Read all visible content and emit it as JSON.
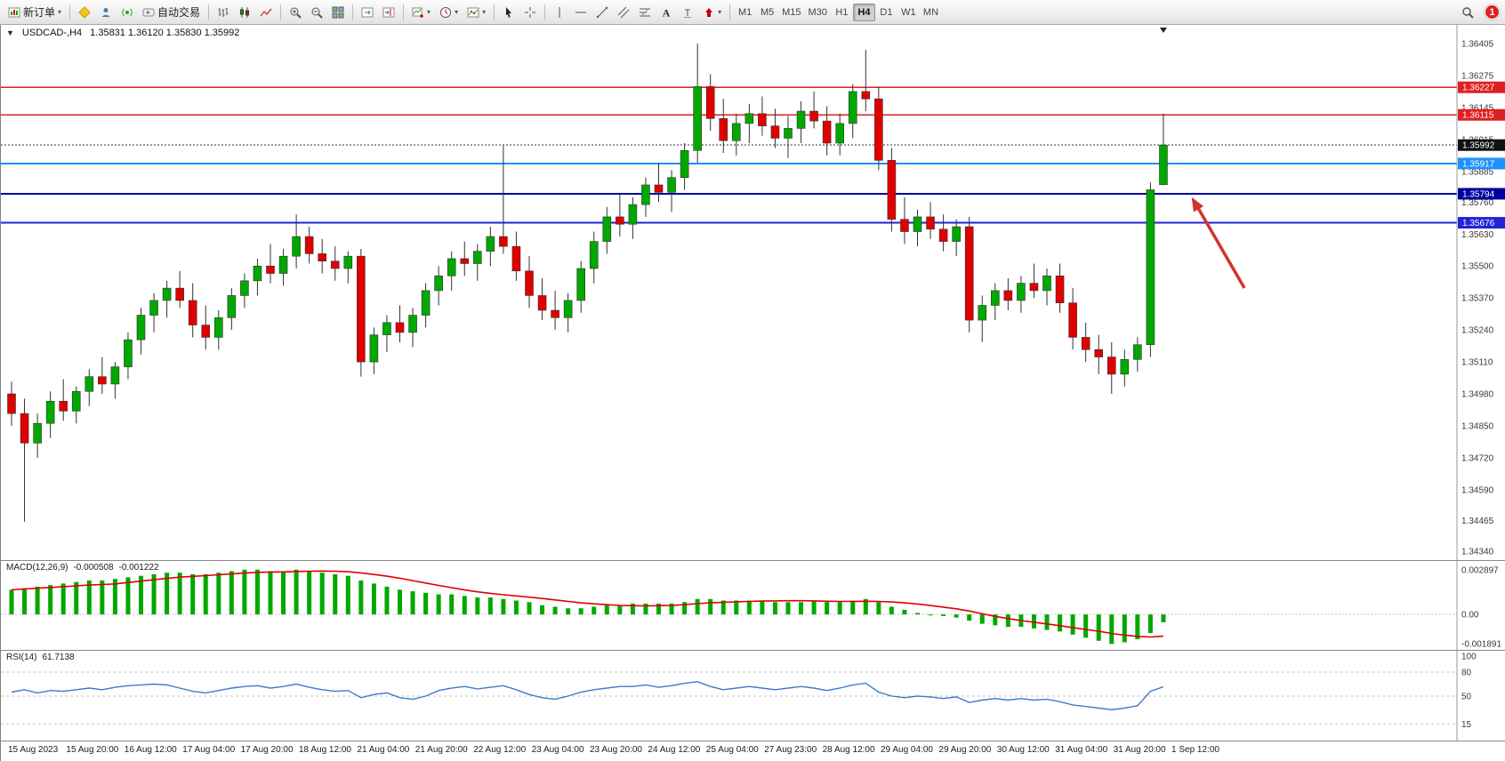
{
  "toolbar": {
    "new_order_label": "新订单",
    "auto_trading_label": "自动交易",
    "caret_char": "▾",
    "groups": [
      [
        {
          "name": "new-order-button",
          "icon": "new-order-icon",
          "label_key": "new_order_label",
          "caret": true
        }
      ],
      [
        {
          "name": "market-button",
          "icon": "market-icon"
        },
        {
          "name": "profile-button",
          "icon": "profile-icon"
        },
        {
          "name": "signals-button",
          "icon": "signals-icon"
        },
        {
          "name": "auto-trading-button",
          "icon": "autotrade-icon",
          "label_key": "auto_trading_label"
        }
      ],
      [
        {
          "name": "bar-chart-button",
          "icon": "bar-chart-icon"
        },
        {
          "name": "candle-chart-button",
          "icon": "candle-chart-icon"
        },
        {
          "name": "line-chart-button",
          "icon": "line-chart-icon"
        }
      ],
      [
        {
          "name": "zoom-in-button",
          "icon": "zoom-in-icon"
        },
        {
          "name": "zoom-out-button",
          "icon": "zoom-out-icon"
        },
        {
          "name": "tile-windows-button",
          "icon": "tile-windows-icon"
        }
      ],
      [
        {
          "name": "auto-scroll-button",
          "icon": "autoscroll-icon"
        },
        {
          "name": "chart-shift-button",
          "icon": "chart-shift-icon"
        }
      ],
      [
        {
          "name": "new-chart-button",
          "icon": "new-chart-icon",
          "caret": true
        },
        {
          "name": "periods-button",
          "icon": "period-icon",
          "caret": true
        },
        {
          "name": "indicators-button",
          "icon": "indicators-icon",
          "caret": true
        }
      ],
      [
        {
          "name": "cursor-button",
          "icon": "cursor-icon"
        },
        {
          "name": "crosshair-button",
          "icon": "crosshair-icon"
        }
      ],
      [
        {
          "name": "vertical-line-button",
          "icon": "vline-icon"
        },
        {
          "name": "horizontal-line-button",
          "icon": "hline-icon"
        },
        {
          "name": "trendline-button",
          "icon": "trendline-icon"
        },
        {
          "name": "channel-button",
          "icon": "channel-icon"
        },
        {
          "name": "fibonacci-button",
          "icon": "fibo-icon"
        },
        {
          "name": "text-button",
          "icon": "text-icon"
        },
        {
          "name": "text-label-button",
          "icon": "label-icon"
        },
        {
          "name": "arrows-button",
          "icon": "arrows-icon",
          "caret": true
        }
      ]
    ],
    "timeframes": [
      "M1",
      "M5",
      "M15",
      "M30",
      "H1",
      "H4",
      "D1",
      "W1",
      "MN"
    ],
    "active_timeframe": "H4",
    "notification_count": "1"
  },
  "chart": {
    "title": "USDCAD-,H4",
    "ohlc": "1.35831 1.36120 1.35830 1.35992",
    "collapse_arrow": "▼",
    "price_axis_labels": [
      "1.36405",
      "1.36275",
      "1.36145",
      "1.36015",
      "1.35885",
      "1.35760",
      "1.35630",
      "1.35500",
      "1.35370",
      "1.35240",
      "1.35110",
      "1.34980",
      "1.34850",
      "1.34720",
      "1.34590",
      "1.34465",
      "1.34340"
    ],
    "hlines": [
      {
        "price": 1.36227,
        "label": "1.36227",
        "line": "#e02020",
        "badge": "#e02020",
        "width": 1.4,
        "style": "solid"
      },
      {
        "price": 1.36115,
        "label": "1.36115",
        "line": "#e02020",
        "badge": "#e02020",
        "width": 1.4,
        "style": "solid"
      },
      {
        "price": 1.35992,
        "label": "1.35992",
        "line": "#333333",
        "badge": "#111111",
        "width": 1,
        "style": "dotted"
      },
      {
        "price": 1.35917,
        "label": "1.35917",
        "line": "#1e90ff",
        "badge": "#1e90ff",
        "width": 2,
        "style": "solid"
      },
      {
        "price": 1.35794,
        "label": "1.35794",
        "line": "#0000a0",
        "badge": "#0000a0",
        "width": 2,
        "style": "solid"
      },
      {
        "price": 1.35676,
        "label": "1.35676",
        "line": "#2222d8",
        "badge": "#2222d8",
        "width": 2,
        "style": "solid"
      }
    ],
    "time_axis_labels": [
      "15 Aug 2023",
      "15 Aug 20:00",
      "16 Aug 12:00",
      "17 Aug 04:00",
      "17 Aug 20:00",
      "18 Aug 12:00",
      "21 Aug 04:00",
      "21 Aug 20:00",
      "22 Aug 12:00",
      "23 Aug 04:00",
      "23 Aug 20:00",
      "24 Aug 12:00",
      "25 Aug 04:00",
      "27 Aug 23:00",
      "28 Aug 12:00",
      "29 Aug 04:00",
      "29 Aug 20:00",
      "30 Aug 12:00",
      "31 Aug 04:00",
      "31 Aug 20:00",
      "1 Sep 12:00"
    ],
    "colors": {
      "up": "#00a800",
      "down": "#e00000",
      "wick": "#333333",
      "macd_bar": "#00a800",
      "macd_signal": "#e00000",
      "rsi_line": "#3e7bc8",
      "annotation": "#d0342c"
    }
  },
  "panes": {
    "macd": {
      "label": "MACD(12,26,9)",
      "value1": "-0.000508",
      "value2": "-0.001222",
      "yticks": [
        "0.002897",
        "0.00",
        "-0.001891"
      ]
    },
    "rsi": {
      "label": "RSI(14)",
      "value": "61.7138",
      "yticks": [
        "100",
        "80",
        "50",
        "15"
      ],
      "levels": [
        80,
        50,
        15
      ]
    }
  },
  "chart_data": [
    {
      "type": "candlestick",
      "symbol": "USDCAD-",
      "timeframe": "H4",
      "title": "USDCAD-,H4",
      "current_bar": {
        "open": 1.35831,
        "high": 1.3612,
        "low": 1.3583,
        "close": 1.35992
      },
      "ylim": [
        1.3434,
        1.36405
      ],
      "hlines": [
        1.36227,
        1.36115,
        1.35992,
        1.35917,
        1.35794,
        1.35676
      ],
      "ohlc": [
        [
          1.3498,
          1.3503,
          1.3485,
          1.349
        ],
        [
          1.349,
          1.3496,
          1.3446,
          1.3478
        ],
        [
          1.3478,
          1.349,
          1.3472,
          1.3486
        ],
        [
          1.3486,
          1.3499,
          1.348,
          1.3495
        ],
        [
          1.3495,
          1.3504,
          1.3487,
          1.3491
        ],
        [
          1.3491,
          1.3501,
          1.3486,
          1.3499
        ],
        [
          1.3499,
          1.3508,
          1.3493,
          1.3505
        ],
        [
          1.3505,
          1.3513,
          1.3498,
          1.3502
        ],
        [
          1.3502,
          1.3511,
          1.3496,
          1.3509
        ],
        [
          1.3509,
          1.3523,
          1.3504,
          1.352
        ],
        [
          1.352,
          1.3533,
          1.3514,
          1.353
        ],
        [
          1.353,
          1.3539,
          1.3523,
          1.3536
        ],
        [
          1.3536,
          1.3544,
          1.3529,
          1.3541
        ],
        [
          1.3541,
          1.3548,
          1.3533,
          1.3536
        ],
        [
          1.3536,
          1.3543,
          1.3521,
          1.3526
        ],
        [
          1.3526,
          1.3534,
          1.3516,
          1.3521
        ],
        [
          1.3521,
          1.3532,
          1.3516,
          1.3529
        ],
        [
          1.3529,
          1.3541,
          1.3524,
          1.3538
        ],
        [
          1.3538,
          1.3547,
          1.3533,
          1.3544
        ],
        [
          1.3544,
          1.3553,
          1.3538,
          1.355
        ],
        [
          1.355,
          1.3559,
          1.3543,
          1.3547
        ],
        [
          1.3547,
          1.3557,
          1.3542,
          1.3554
        ],
        [
          1.3554,
          1.3571,
          1.3549,
          1.3562
        ],
        [
          1.3562,
          1.3566,
          1.3551,
          1.3555
        ],
        [
          1.3555,
          1.3561,
          1.3547,
          1.3552
        ],
        [
          1.3552,
          1.3558,
          1.3544,
          1.3549
        ],
        [
          1.3549,
          1.3556,
          1.3543,
          1.3554
        ],
        [
          1.3554,
          1.3557,
          1.3505,
          1.3511
        ],
        [
          1.3511,
          1.3525,
          1.3506,
          1.3522
        ],
        [
          1.3522,
          1.353,
          1.3515,
          1.3527
        ],
        [
          1.3527,
          1.3534,
          1.3519,
          1.3523
        ],
        [
          1.3523,
          1.3533,
          1.3517,
          1.353
        ],
        [
          1.353,
          1.3543,
          1.3525,
          1.354
        ],
        [
          1.354,
          1.355,
          1.3534,
          1.3546
        ],
        [
          1.3546,
          1.3556,
          1.354,
          1.3553
        ],
        [
          1.3553,
          1.356,
          1.3546,
          1.3551
        ],
        [
          1.3551,
          1.3559,
          1.3544,
          1.3556
        ],
        [
          1.3556,
          1.3566,
          1.355,
          1.3562
        ],
        [
          1.3562,
          1.3599,
          1.3555,
          1.3558
        ],
        [
          1.3558,
          1.3564,
          1.3544,
          1.3548
        ],
        [
          1.3548,
          1.3554,
          1.3533,
          1.3538
        ],
        [
          1.3538,
          1.3545,
          1.3528,
          1.3532
        ],
        [
          1.3532,
          1.354,
          1.3524,
          1.3529
        ],
        [
          1.3529,
          1.3539,
          1.3523,
          1.3536
        ],
        [
          1.3536,
          1.3552,
          1.3531,
          1.3549
        ],
        [
          1.3549,
          1.3564,
          1.3543,
          1.356
        ],
        [
          1.356,
          1.3574,
          1.3555,
          1.357
        ],
        [
          1.357,
          1.3579,
          1.3562,
          1.3567
        ],
        [
          1.3567,
          1.3578,
          1.3561,
          1.3575
        ],
        [
          1.3575,
          1.3586,
          1.357,
          1.3583
        ],
        [
          1.3583,
          1.3592,
          1.3576,
          1.358
        ],
        [
          1.358,
          1.3589,
          1.3572,
          1.3586
        ],
        [
          1.3586,
          1.36,
          1.3581,
          1.3597
        ],
        [
          1.3597,
          1.36405,
          1.3592,
          1.3623
        ],
        [
          1.3623,
          1.3628,
          1.3605,
          1.361
        ],
        [
          1.361,
          1.3618,
          1.3596,
          1.3601
        ],
        [
          1.3601,
          1.3612,
          1.3595,
          1.3608
        ],
        [
          1.3608,
          1.3616,
          1.36,
          1.3612
        ],
        [
          1.3612,
          1.3619,
          1.3603,
          1.3607
        ],
        [
          1.3607,
          1.3614,
          1.3598,
          1.3602
        ],
        [
          1.3602,
          1.3611,
          1.3594,
          1.3606
        ],
        [
          1.3606,
          1.3617,
          1.36,
          1.3613
        ],
        [
          1.3613,
          1.3621,
          1.3606,
          1.3609
        ],
        [
          1.3609,
          1.3615,
          1.3595,
          1.36
        ],
        [
          1.36,
          1.3612,
          1.3595,
          1.3608
        ],
        [
          1.3608,
          1.3624,
          1.3602,
          1.3621
        ],
        [
          1.3621,
          1.3638,
          1.3613,
          1.3618
        ],
        [
          1.3618,
          1.3623,
          1.3589,
          1.3593
        ],
        [
          1.3593,
          1.3598,
          1.3564,
          1.3569
        ],
        [
          1.3569,
          1.3578,
          1.3559,
          1.3564
        ],
        [
          1.3564,
          1.3573,
          1.3558,
          1.357
        ],
        [
          1.357,
          1.3576,
          1.3561,
          1.3565
        ],
        [
          1.3565,
          1.3571,
          1.3556,
          1.356
        ],
        [
          1.356,
          1.3569,
          1.3554,
          1.3566
        ],
        [
          1.3566,
          1.357,
          1.3523,
          1.3528
        ],
        [
          1.3528,
          1.3538,
          1.3519,
          1.3534
        ],
        [
          1.3534,
          1.3543,
          1.3528,
          1.354
        ],
        [
          1.354,
          1.3545,
          1.3532,
          1.3536
        ],
        [
          1.3536,
          1.3546,
          1.3531,
          1.3543
        ],
        [
          1.3543,
          1.3551,
          1.3537,
          1.354
        ],
        [
          1.354,
          1.3549,
          1.3534,
          1.3546
        ],
        [
          1.3546,
          1.3551,
          1.3531,
          1.3535
        ],
        [
          1.3535,
          1.3541,
          1.3516,
          1.3521
        ],
        [
          1.3521,
          1.3527,
          1.3511,
          1.3516
        ],
        [
          1.3516,
          1.3522,
          1.3506,
          1.3513
        ],
        [
          1.3513,
          1.3519,
          1.3498,
          1.3506
        ],
        [
          1.3506,
          1.3516,
          1.3501,
          1.3512
        ],
        [
          1.3512,
          1.3521,
          1.3507,
          1.3518
        ],
        [
          1.3518,
          1.3584,
          1.3513,
          1.3581
        ],
        [
          1.35831,
          1.3612,
          1.3583,
          1.35992
        ]
      ]
    },
    {
      "type": "bar",
      "name": "MACD(12,26,9)",
      "current_values": [
        -0.000508,
        -0.001222
      ],
      "ylim": [
        -0.002,
        0.003
      ],
      "yticks": [
        "0.002897",
        "0.00",
        "-0.001891"
      ],
      "signal_period": 9,
      "values": [
        0.0016,
        0.0017,
        0.0018,
        0.0019,
        0.002,
        0.0021,
        0.0022,
        0.0022,
        0.0023,
        0.0024,
        0.0025,
        0.0026,
        0.0027,
        0.0027,
        0.0026,
        0.0026,
        0.0027,
        0.0028,
        0.0029,
        0.0029,
        0.0028,
        0.0028,
        0.0029,
        0.0028,
        0.0027,
        0.0026,
        0.0025,
        0.0022,
        0.002,
        0.0018,
        0.0016,
        0.0015,
        0.0014,
        0.0013,
        0.0013,
        0.0012,
        0.0011,
        0.0011,
        0.001,
        0.0009,
        0.0008,
        0.0006,
        0.0005,
        0.0004,
        0.0004,
        0.0005,
        0.0006,
        0.0006,
        0.0007,
        0.0007,
        0.0007,
        0.0007,
        0.0008,
        0.001,
        0.001,
        0.0009,
        0.0009,
        0.0009,
        0.0009,
        0.0008,
        0.0008,
        0.0008,
        0.0009,
        0.0008,
        0.0008,
        0.0009,
        0.001,
        0.0008,
        0.0005,
        0.0003,
        0.0001,
        0.0,
        -0.0001,
        -0.0002,
        -0.0004,
        -0.0006,
        -0.0007,
        -0.0008,
        -0.0008,
        -0.0009,
        -0.001,
        -0.0011,
        -0.0013,
        -0.0015,
        -0.0017,
        -0.0019,
        -0.0018,
        -0.0016,
        -0.0012,
        -0.000508
      ]
    },
    {
      "type": "line",
      "name": "RSI(14)",
      "current_value": 61.7138,
      "ylim": [
        0,
        100
      ],
      "levels": [
        80,
        50,
        15
      ],
      "values": [
        55,
        58,
        54,
        57,
        56,
        58,
        60,
        58,
        61,
        63,
        64,
        65,
        64,
        60,
        56,
        54,
        57,
        60,
        62,
        63,
        60,
        62,
        65,
        61,
        58,
        56,
        57,
        48,
        52,
        54,
        48,
        46,
        50,
        57,
        60,
        62,
        59,
        61,
        63,
        58,
        52,
        48,
        46,
        50,
        55,
        58,
        60,
        62,
        62,
        64,
        61,
        63,
        66,
        68,
        62,
        58,
        60,
        62,
        60,
        58,
        60,
        62,
        60,
        57,
        60,
        64,
        66,
        55,
        50,
        48,
        50,
        49,
        47,
        49,
        42,
        45,
        47,
        45,
        47,
        45,
        46,
        43,
        39,
        37,
        35,
        33,
        35,
        38,
        56,
        61.71
      ]
    }
  ]
}
